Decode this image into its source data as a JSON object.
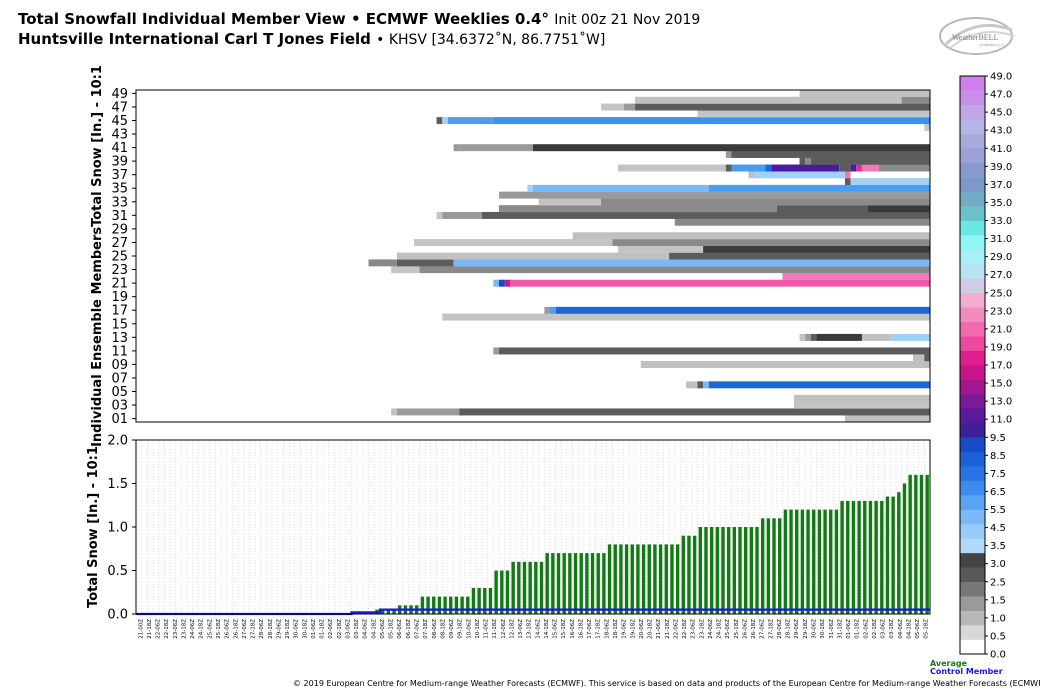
{
  "header": {
    "title_main": "Total Snowfall Individual Member View • ECMWF Weeklies 0.4",
    "title_deg": "°",
    "title_init": "Init 00z 21 Nov 2019",
    "station_name": "Huntsville International Carl T Jones Field",
    "station_info": "• KHSV [34.6372˚N, 86.7751˚W]"
  },
  "logo": {
    "text": "WeatherBELL",
    "subtext": "Analytics LLC"
  },
  "footer": {
    "copyright": "© 2019 European Centre for Medium-range Weather Forecasts (ECMWF). This service is based on data and products of the European Centre for Medium-range Weather Forecasts (ECMWF)."
  },
  "legend": {
    "average": "Average",
    "control": "Control Member"
  },
  "chart_data": [
    {
      "type": "heatmap",
      "ylabel": "Individual Ensemble MembersTotal Snow [In.] - 10:1",
      "y_tick_labels": [
        "01",
        "03",
        "05",
        "07",
        "09",
        "11",
        "13",
        "15",
        "17",
        "19",
        "21",
        "23",
        "25",
        "27",
        "29",
        "31",
        "33",
        "35",
        "37",
        "39",
        "41",
        "43",
        "45",
        "47",
        "49"
      ],
      "time_steps": 140,
      "members": [
        {
          "m": 1,
          "segs": [
            [
              125,
              140,
              "c1"
            ]
          ]
        },
        {
          "m": 2,
          "segs": [
            [
              45,
              46,
              "c1"
            ],
            [
              46,
              57,
              "c3"
            ],
            [
              57,
              140,
              "c5"
            ]
          ]
        },
        {
          "m": 3,
          "segs": [
            [
              116,
              140,
              "c2"
            ]
          ]
        },
        {
          "m": 4,
          "segs": [
            [
              116,
              140,
              "c1"
            ]
          ]
        },
        {
          "m": 6,
          "segs": [
            [
              97,
              99,
              "c1"
            ],
            [
              99,
              100,
              "c5"
            ],
            [
              100,
              101,
              "b2"
            ],
            [
              101,
              140,
              "b5"
            ]
          ]
        },
        {
          "m": 9,
          "segs": [
            [
              89,
              140,
              "c1"
            ]
          ]
        },
        {
          "m": 10,
          "segs": [
            [
              137,
              139,
              "c1"
            ],
            [
              139,
              140,
              "c5"
            ]
          ]
        },
        {
          "m": 11,
          "segs": [
            [
              63,
              64,
              "c3"
            ],
            [
              64,
              140,
              "c5"
            ]
          ]
        },
        {
          "m": 13,
          "segs": [
            [
              117,
              118,
              "c1"
            ],
            [
              118,
              119,
              "c3"
            ],
            [
              119,
              120,
              "c5"
            ],
            [
              120,
              128,
              "c6"
            ],
            [
              128,
              133,
              "c1"
            ],
            [
              133,
              140,
              "b1"
            ]
          ]
        },
        {
          "m": 16,
          "segs": [
            [
              54,
              140,
              "c2"
            ]
          ]
        },
        {
          "m": 17,
          "segs": [
            [
              72,
              73,
              "c3"
            ],
            [
              73,
              74,
              "b3"
            ],
            [
              74,
              140,
              "b5"
            ]
          ]
        },
        {
          "m": 21,
          "segs": [
            [
              63,
              64,
              "b2"
            ],
            [
              64,
              65,
              "b6"
            ],
            [
              65,
              66,
              "k1"
            ],
            [
              66,
              140,
              "p1"
            ]
          ]
        },
        {
          "m": 22,
          "segs": [
            [
              114,
              140,
              "p2"
            ]
          ]
        },
        {
          "m": 23,
          "segs": [
            [
              45,
              50,
              "c2"
            ],
            [
              50,
              140,
              "c4"
            ]
          ]
        },
        {
          "m": 24,
          "segs": [
            [
              41,
              46,
              "c4"
            ],
            [
              46,
              56,
              "c5"
            ],
            [
              56,
              140,
              "b2"
            ]
          ]
        },
        {
          "m": 25,
          "segs": [
            [
              46,
              94,
              "c1"
            ],
            [
              94,
              140,
              "c5"
            ]
          ]
        },
        {
          "m": 26,
          "segs": [
            [
              85,
              100,
              "c2"
            ],
            [
              100,
              140,
              "c6"
            ]
          ]
        },
        {
          "m": 27,
          "segs": [
            [
              49,
              84,
              "c2"
            ],
            [
              84,
              140,
              "c4"
            ]
          ]
        },
        {
          "m": 28,
          "segs": [
            [
              77,
              140,
              "c1"
            ]
          ]
        },
        {
          "m": 30,
          "segs": [
            [
              95,
              140,
              "c4"
            ]
          ]
        },
        {
          "m": 31,
          "segs": [
            [
              53,
              54,
              "c2"
            ],
            [
              54,
              61,
              "c3"
            ],
            [
              61,
              140,
              "c5"
            ]
          ]
        },
        {
          "m": 32,
          "segs": [
            [
              64,
              113,
              "c4"
            ],
            [
              113,
              129,
              "c5"
            ],
            [
              129,
              140,
              "c6"
            ]
          ]
        },
        {
          "m": 33,
          "segs": [
            [
              71,
              82,
              "c2"
            ],
            [
              82,
              140,
              "c4"
            ]
          ]
        },
        {
          "m": 34,
          "segs": [
            [
              64,
              140,
              "c3"
            ]
          ]
        },
        {
          "m": 35,
          "segs": [
            [
              69,
              70,
              "b1"
            ],
            [
              70,
              101,
              "b2"
            ],
            [
              101,
              140,
              "b3"
            ]
          ]
        },
        {
          "m": 36,
          "segs": [
            [
              125,
              126,
              "c5"
            ],
            [
              126,
              140,
              "b1"
            ]
          ]
        },
        {
          "m": 37,
          "segs": [
            [
              108,
              109,
              "c1"
            ],
            [
              109,
              125,
              "b1"
            ],
            [
              125,
              126,
              "p2"
            ]
          ]
        },
        {
          "m": 38,
          "segs": [
            [
              85,
              104,
              "c2"
            ],
            [
              104,
              105,
              "c5"
            ],
            [
              105,
              111,
              "b3"
            ],
            [
              111,
              112,
              "b5"
            ],
            [
              112,
              124,
              "k2"
            ],
            [
              124,
              126,
              "c5"
            ],
            [
              126,
              127,
              "k2"
            ],
            [
              127,
              128,
              "k4"
            ],
            [
              128,
              131,
              "p2"
            ],
            [
              131,
              140,
              "c4"
            ]
          ]
        },
        {
          "m": 39,
          "segs": [
            [
              117,
              118,
              "c5"
            ],
            [
              118,
              119,
              "c4"
            ],
            [
              119,
              140,
              "c5"
            ]
          ]
        },
        {
          "m": 40,
          "segs": [
            [
              104,
              105,
              "c3"
            ],
            [
              105,
              140,
              "c5"
            ]
          ]
        },
        {
          "m": 41,
          "segs": [
            [
              56,
              57,
              "c3"
            ],
            [
              57,
              70,
              "c3"
            ],
            [
              70,
              140,
              "c6"
            ]
          ]
        },
        {
          "m": 44,
          "segs": [
            [
              139,
              140,
              "c2"
            ]
          ]
        },
        {
          "m": 45,
          "segs": [
            [
              53,
              54,
              "c5"
            ],
            [
              54,
              55,
              "b1"
            ],
            [
              55,
              63,
              "b3"
            ],
            [
              63,
              140,
              "b4"
            ]
          ]
        },
        {
          "m": 46,
          "segs": [
            [
              99,
              140,
              "c2"
            ]
          ]
        },
        {
          "m": 47,
          "segs": [
            [
              82,
              86,
              "c2"
            ],
            [
              86,
              88,
              "c3"
            ],
            [
              88,
              140,
              "c5"
            ]
          ]
        },
        {
          "m": 48,
          "segs": [
            [
              88,
              135,
              "c1"
            ],
            [
              135,
              140,
              "c4"
            ]
          ]
        },
        {
          "m": 49,
          "segs": [
            [
              117,
              140,
              "c1"
            ]
          ]
        }
      ]
    },
    {
      "type": "bar",
      "ylabel": "Total Snow [In.] - 10:1",
      "ylim": [
        0,
        2.0
      ],
      "y_ticks": [
        "0.0",
        "0.5",
        "1.0",
        "1.5",
        "2.0"
      ],
      "x_labels": [
        "21-00Z",
        "21-18Z",
        "22-06Z",
        "22-18Z",
        "23-06Z",
        "23-18Z",
        "24-06Z",
        "24-18Z",
        "25-06Z",
        "25-18Z",
        "26-06Z",
        "26-18Z",
        "27-06Z",
        "27-18Z",
        "28-06Z",
        "28-18Z",
        "29-06Z",
        "29-18Z",
        "30-06Z",
        "30-18Z",
        "01-06Z",
        "01-18Z",
        "02-06Z",
        "02-18Z",
        "03-06Z",
        "03-18Z",
        "04-06Z",
        "04-18Z",
        "05-06Z",
        "05-18Z",
        "06-06Z",
        "06-18Z",
        "07-06Z",
        "07-18Z",
        "08-06Z",
        "08-18Z",
        "09-06Z",
        "09-18Z",
        "10-06Z",
        "10-18Z",
        "11-06Z",
        "11-18Z",
        "12-06Z",
        "12-18Z",
        "13-06Z",
        "13-18Z",
        "14-06Z",
        "14-18Z",
        "15-06Z",
        "15-18Z",
        "16-06Z",
        "16-18Z",
        "17-06Z",
        "17-18Z",
        "18-06Z",
        "18-18Z",
        "19-06Z",
        "19-18Z",
        "20-06Z",
        "20-18Z",
        "21-06Z",
        "21-18Z",
        "22-06Z",
        "22-18Z",
        "23-06Z",
        "23-18Z",
        "24-06Z",
        "24-18Z",
        "25-06Z",
        "25-18Z",
        "26-06Z",
        "26-18Z",
        "27-06Z",
        "27-18Z",
        "28-06Z",
        "28-18Z",
        "29-06Z",
        "29-18Z",
        "30-06Z",
        "30-18Z",
        "31-06Z",
        "31-18Z",
        "01-06Z",
        "01-18Z",
        "02-06Z",
        "02-18Z",
        "03-06Z",
        "03-18Z",
        "04-06Z",
        "04-18Z",
        "05-06Z",
        "05-18Z"
      ],
      "steps": [
        [
          0,
          38,
          0.0
        ],
        [
          38,
          42,
          0.02
        ],
        [
          42,
          46,
          0.05
        ],
        [
          46,
          50,
          0.1
        ],
        [
          50,
          59,
          0.2
        ],
        [
          59,
          63,
          0.3
        ],
        [
          63,
          66,
          0.5
        ],
        [
          66,
          68,
          0.6
        ],
        [
          68,
          72,
          0.6
        ],
        [
          72,
          83,
          0.7
        ],
        [
          83,
          92,
          0.8
        ],
        [
          92,
          96,
          0.8
        ],
        [
          96,
          99,
          0.9
        ],
        [
          99,
          105,
          1.0
        ],
        [
          105,
          110,
          1.0
        ],
        [
          110,
          114,
          1.1
        ],
        [
          114,
          118,
          1.2
        ],
        [
          118,
          124,
          1.2
        ],
        [
          124,
          132,
          1.3
        ],
        [
          132,
          134,
          1.35
        ],
        [
          134,
          135,
          1.4
        ],
        [
          135,
          136,
          1.5
        ],
        [
          136,
          140,
          1.6
        ]
      ],
      "series": [
        {
          "name": "Average",
          "color": "#127a12"
        },
        {
          "name": "Control Member",
          "color": "#1a1ad6",
          "steps": [
            [
              0,
              38,
              0.0
            ],
            [
              38,
              43,
              0.02
            ],
            [
              43,
              140,
              0.05
            ]
          ]
        }
      ],
      "colorbar": {
        "labels": [
          "0.0",
          "0.5",
          "1.0",
          "1.5",
          "2.5",
          "3.0",
          "3.5",
          "4.5",
          "5.5",
          "6.5",
          "7.5",
          "8.5",
          "9.5",
          "11.0",
          "13.0",
          "15.0",
          "17.0",
          "19.0",
          "21.0",
          "23.0",
          "25.0",
          "27.0",
          "29.0",
          "31.0",
          "33.0",
          "35.0",
          "37.0",
          "39.0",
          "41.0",
          "43.0",
          "45.0",
          "47.0",
          "49.0"
        ],
        "colors": [
          "#ffffff",
          "#d8d8d8",
          "#b8b8b8",
          "#9a9a9a",
          "#787878",
          "#585858",
          "#444444",
          "#b0d8f8",
          "#98cafa",
          "#7ab8f8",
          "#5aa2f4",
          "#3c8cee",
          "#2674e4",
          "#1a60d8",
          "#1a4cc8",
          "#402098",
          "#5a1a9a",
          "#7a1a98",
          "#a01890",
          "#c8148a",
          "#e01e8c",
          "#ec4a9e",
          "#f06aae",
          "#f08cbe",
          "#f4acd0",
          "#d0cce8",
          "#b8e2f4",
          "#a8f0f6",
          "#8ef6f4",
          "#6ae8e4",
          "#6cc0c8",
          "#74aac4",
          "#7c98c8",
          "#869ad0",
          "#9aa2d8",
          "#a8aadc",
          "#b4b4e6",
          "#c0a8e8",
          "#c890ea",
          "#d080ee"
        ]
      },
      "palette": {
        "c1": "#c0c0c0",
        "c2": "#c4c4c4",
        "c3": "#9a9a9a",
        "c4": "#8a8a8a",
        "c5": "#5c5c5c",
        "c6": "#3a3a3a",
        "b1": "#9fd2f6",
        "b2": "#7ab8f8",
        "b3": "#4c9cf0",
        "b4": "#3a92ee",
        "b5": "#1e66da",
        "b6": "#1848c8",
        "k1": "#c81a90",
        "k2": "#4a1aa0",
        "k4": "#e03090",
        "p1": "#ec5aa8",
        "p2": "#f07ab8"
      }
    }
  ]
}
